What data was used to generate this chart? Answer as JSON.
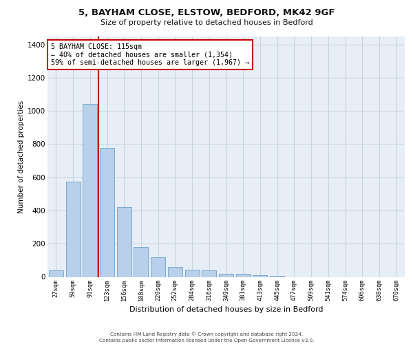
{
  "title1": "5, BAYHAM CLOSE, ELSTOW, BEDFORD, MK42 9GF",
  "title2": "Size of property relative to detached houses in Bedford",
  "xlabel": "Distribution of detached houses by size in Bedford",
  "ylabel": "Number of detached properties",
  "categories": [
    "27sqm",
    "59sqm",
    "91sqm",
    "123sqm",
    "156sqm",
    "188sqm",
    "220sqm",
    "252sqm",
    "284sqm",
    "316sqm",
    "349sqm",
    "381sqm",
    "413sqm",
    "445sqm",
    "477sqm",
    "509sqm",
    "541sqm",
    "574sqm",
    "606sqm",
    "638sqm",
    "670sqm"
  ],
  "values": [
    40,
    575,
    1040,
    775,
    420,
    180,
    120,
    60,
    45,
    40,
    20,
    20,
    10,
    8,
    0,
    0,
    0,
    0,
    0,
    0,
    0
  ],
  "bar_color": "#b8d0ea",
  "bar_edge_color": "#6aa0cc",
  "vline_color": "#cc0000",
  "annotation_text": "5 BAYHAM CLOSE: 115sqm\n← 40% of detached houses are smaller (1,354)\n59% of semi-detached houses are larger (1,967) →",
  "annotation_box_color": "#ffffff",
  "annotation_edge_color": "#cc0000",
  "ylim": [
    0,
    1450
  ],
  "yticks": [
    0,
    200,
    400,
    600,
    800,
    1000,
    1200,
    1400
  ],
  "grid_color": "#c8d4e4",
  "background_color": "#e8eef6",
  "footer1": "Contains HM Land Registry data © Crown copyright and database right 2024.",
  "footer2": "Contains public sector information licensed under the Open Government Licence v3.0."
}
